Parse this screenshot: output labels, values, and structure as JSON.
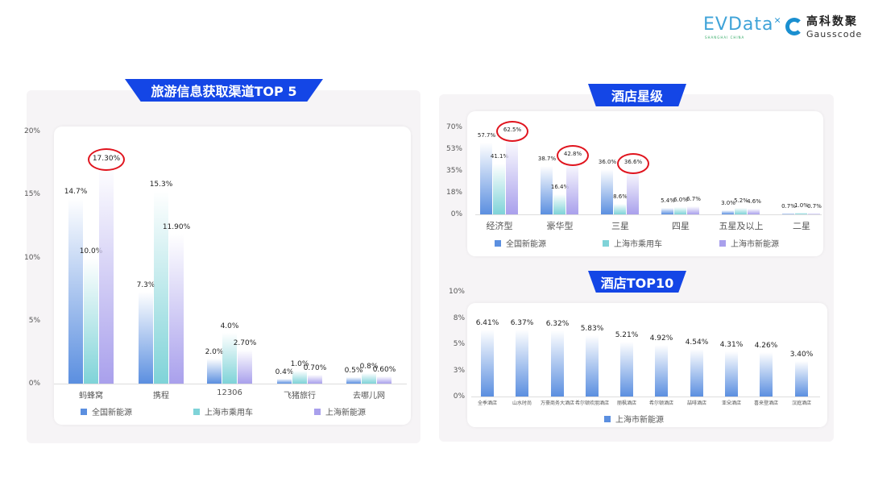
{
  "logos": {
    "evdata": "EVData",
    "evdata_sub": "SHANGHAI CHINA",
    "gauss_cn": "高科数聚",
    "gauss_en": "Gausscode"
  },
  "colors": {
    "series1": "#5b8fe0",
    "series2": "#7fd3d8",
    "series3": "#a9a0ec",
    "banner": "#1446e6",
    "highlight_ring": "#e0141e"
  },
  "chart_data": [
    {
      "type": "bar",
      "title": "旅游信息获取渠道TOP 5",
      "categories": [
        "蚂蜂窝",
        "携程",
        "12306",
        "飞猪旅行",
        "去哪儿网"
      ],
      "series": [
        {
          "name": "全国新能源",
          "values": [
            14.7,
            7.3,
            2.0,
            0.4,
            0.5
          ],
          "labels": [
            "14.7%",
            "7.3%",
            "2.0%",
            "0.4%",
            "0.5%"
          ]
        },
        {
          "name": "上海市乘用车",
          "values": [
            10.0,
            15.3,
            4.0,
            1.0,
            0.8
          ],
          "labels": [
            "10.0%",
            "15.3%",
            "4.0%",
            "1.0%",
            "0.8%"
          ]
        },
        {
          "name": "上海新能源",
          "values": [
            17.3,
            11.9,
            2.7,
            0.7,
            0.6
          ],
          "labels": [
            "17.30%",
            "11.90%",
            "2.70%",
            "0.70%",
            "0.60%"
          ]
        }
      ],
      "yticks": [
        "0%",
        "5%",
        "10%",
        "15%",
        "20%"
      ],
      "ytick_values": [
        0,
        5,
        10,
        15,
        20
      ],
      "ylim": [
        0,
        20
      ],
      "highlighted": [
        {
          "series": 2,
          "category": 0
        }
      ],
      "legend": "bottom"
    },
    {
      "type": "bar",
      "title": "酒店星级",
      "categories": [
        "经济型",
        "豪华型",
        "三星",
        "四星",
        "五星及以上",
        "二星"
      ],
      "series": [
        {
          "name": "全国新能源",
          "values": [
            57.7,
            38.7,
            36.0,
            5.4,
            3.0,
            0.7
          ],
          "labels": [
            "57.7%",
            "38.7%",
            "36.0%",
            "5.4%",
            "3.0%",
            "0.7%"
          ]
        },
        {
          "name": "上海市乘用车",
          "values": [
            41.1,
            16.4,
            8.6,
            6.0,
            5.2,
            1.0
          ],
          "labels": [
            "41.1%",
            "16.4%",
            "8.6%",
            "6.0%",
            "5.2%",
            "1.0%"
          ]
        },
        {
          "name": "上海市新能源",
          "values": [
            62.5,
            42.8,
            36.6,
            6.7,
            4.6,
            0.7
          ],
          "labels": [
            "62.5%",
            "42.8%",
            "36.6%",
            "6.7%",
            "4.6%",
            "0.7%"
          ]
        }
      ],
      "yticks": [
        "0%",
        "18%",
        "35%",
        "53%",
        "70%"
      ],
      "ytick_values": [
        0,
        17.5,
        35,
        52.5,
        70
      ],
      "ylim": [
        0,
        70
      ],
      "highlighted": [
        {
          "series": 2,
          "category": 0
        },
        {
          "series": 2,
          "category": 1
        },
        {
          "series": 2,
          "category": 2
        }
      ],
      "legend": "bottom"
    },
    {
      "type": "bar",
      "title": "酒店TOP10",
      "categories": [
        "全季酒店",
        "山水时尚",
        "万豪商务大酒店",
        "希尔顿欢朋酒店",
        "丽枫酒店",
        "希尔顿酒店",
        "喆啡酒店",
        "亚朵酒店",
        "喜来登酒店",
        "汉庭酒店"
      ],
      "series": [
        {
          "name": "上海市新能源",
          "values": [
            6.41,
            6.37,
            6.32,
            5.83,
            5.21,
            4.92,
            4.54,
            4.31,
            4.26,
            3.4
          ],
          "labels": [
            "6.41%",
            "6.37%",
            "6.32%",
            "5.83%",
            "5.21%",
            "4.92%",
            "4.54%",
            "4.31%",
            "4.26%",
            "3.40%"
          ]
        }
      ],
      "yticks": [
        "0%",
        "3%",
        "5%",
        "8%",
        "10%"
      ],
      "ytick_values": [
        0,
        2.5,
        5,
        7.5,
        10
      ],
      "ylim": [
        0,
        10
      ],
      "highlighted": [],
      "legend": "bottom"
    }
  ]
}
